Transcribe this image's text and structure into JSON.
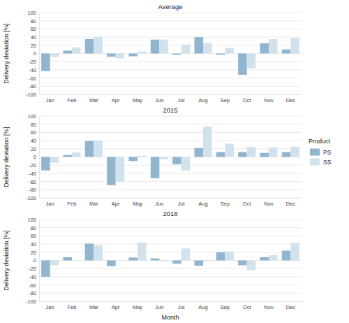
{
  "chart_data": [
    {
      "type": "bar",
      "title": "Average",
      "y_label": "Delivery deviation [%]",
      "categories": [
        "Jan",
        "Feb",
        "Mar",
        "Apr",
        "May",
        "Jun",
        "Jul",
        "Aug",
        "Sep",
        "Oct",
        "Nov",
        "Dec"
      ],
      "series": [
        {
          "name": "PS",
          "color": "#91b4cf",
          "values": [
            -43,
            7,
            35,
            -8,
            -7,
            34,
            -3,
            40,
            -3,
            -52,
            25,
            10
          ]
        },
        {
          "name": "SS",
          "color": "#d2e2ed",
          "values": [
            -9,
            15,
            41,
            -12,
            5,
            34,
            22,
            26,
            13,
            -36,
            35,
            38
          ]
        }
      ],
      "ylim": [
        -100,
        100
      ],
      "yticks": [
        -100,
        -80,
        -60,
        -40,
        -20,
        0,
        20,
        40,
        60,
        80,
        100
      ],
      "grid": true
    },
    {
      "type": "bar",
      "title": "2015",
      "y_label": "Delivery deviation [%]",
      "categories": [
        "Jan",
        "Feb",
        "Mar",
        "Apr",
        "May",
        "Jun",
        "Jul",
        "Aug",
        "Sep",
        "Oct",
        "Nov",
        "Dec"
      ],
      "series": [
        {
          "name": "PS",
          "color": "#91b4cf",
          "values": [
            -33,
            5,
            39,
            -69,
            -10,
            -52,
            -18,
            22,
            12,
            12,
            10,
            12
          ]
        },
        {
          "name": "SS",
          "color": "#d2e2ed",
          "values": [
            -14,
            11,
            40,
            -61,
            3,
            -6,
            -34,
            74,
            32,
            25,
            23,
            25
          ]
        }
      ],
      "ylim": [
        -100,
        100
      ],
      "yticks": [
        -100,
        -80,
        -60,
        -40,
        -20,
        0,
        20,
        40,
        60,
        80,
        100
      ],
      "grid": true,
      "legend": "right",
      "legend_title": "Product"
    },
    {
      "type": "bar",
      "title": "2018",
      "y_label": "Delivery deviation [%]",
      "x_label": "Month",
      "categories": [
        "Jan",
        "Feb",
        "Mar",
        "Apr",
        "May",
        "Jun",
        "Jul",
        "Aug",
        "Sep",
        "Oct",
        "Nov",
        "Dec"
      ],
      "series": [
        {
          "name": "PS",
          "color": "#91b4cf",
          "values": [
            -40,
            8,
            41,
            -14,
            7,
            5,
            -8,
            -13,
            20,
            -12,
            8,
            24
          ]
        },
        {
          "name": "SS",
          "color": "#d2e2ed",
          "values": [
            -12,
            0,
            37,
            0,
            44,
            -2,
            29,
            -2,
            22,
            -24,
            13,
            43
          ]
        }
      ],
      "ylim": [
        -100,
        100
      ],
      "yticks": [
        -100,
        -80,
        -60,
        -40,
        -20,
        0,
        20,
        40,
        60,
        80,
        100
      ],
      "grid": true
    }
  ]
}
